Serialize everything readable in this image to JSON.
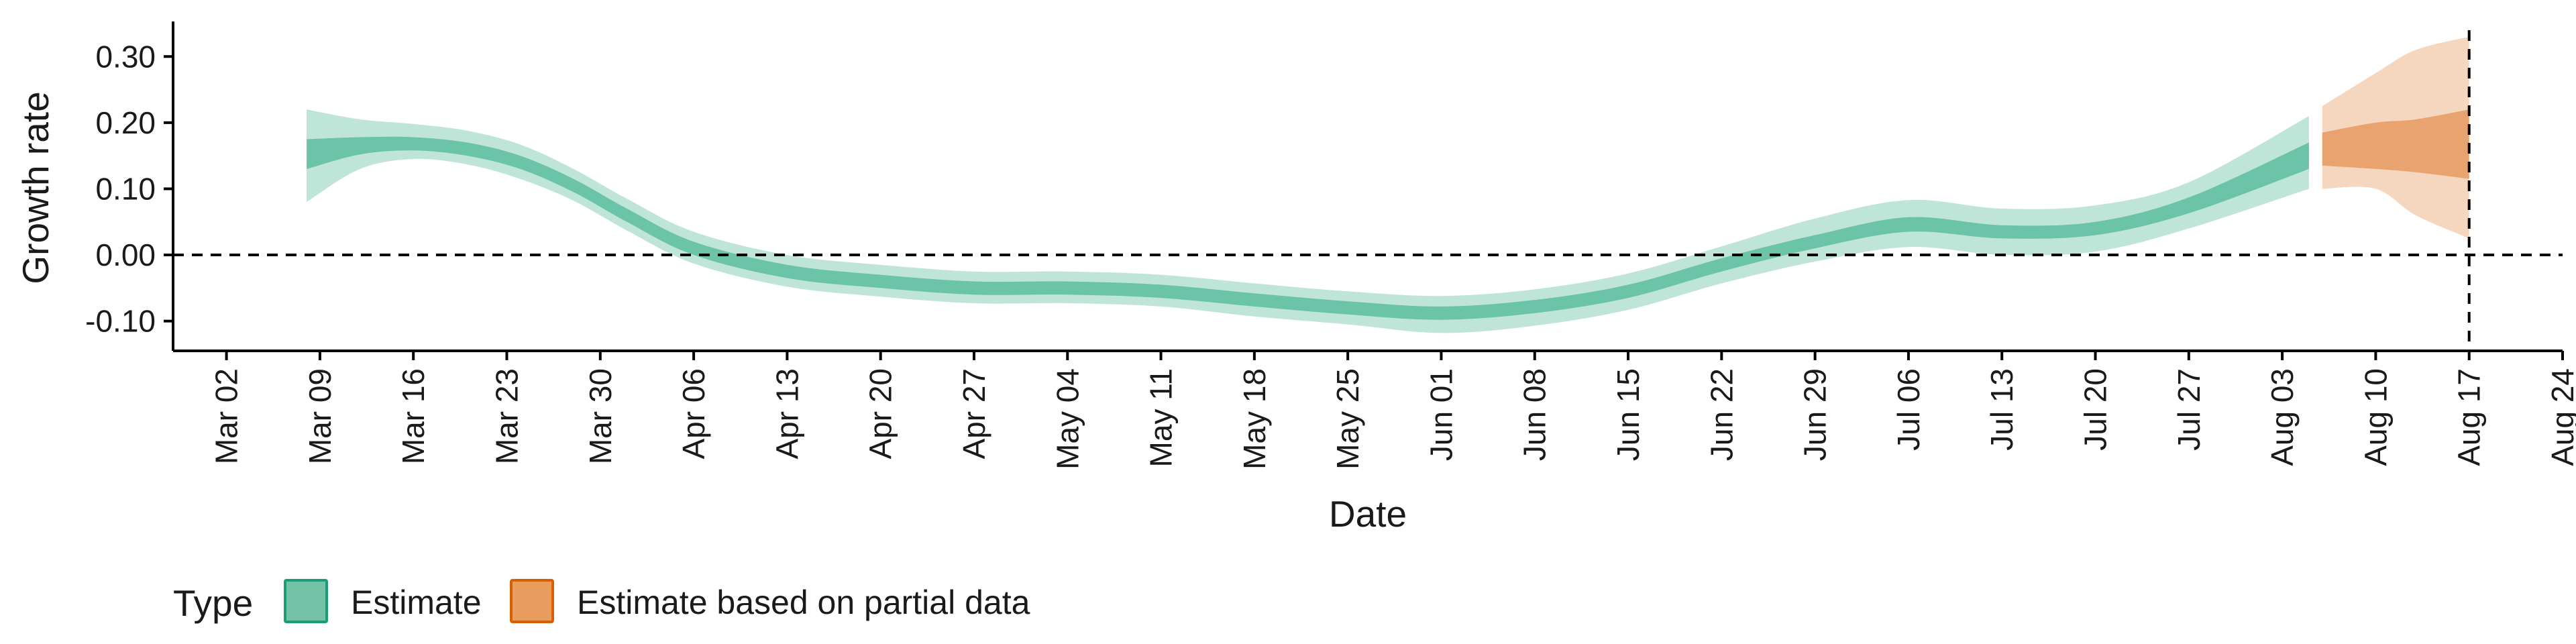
{
  "chart_data": {
    "type": "area",
    "xlabel": "Date",
    "ylabel": "Growth rate",
    "x_range": [
      "2020-02-27",
      "2020-08-24"
    ],
    "ylim": [
      -0.145,
      0.353
    ],
    "y_ticks": [
      -0.1,
      0.0,
      0.1,
      0.2,
      0.3
    ],
    "y_tick_labels": [
      "-0.10",
      "0.00",
      "0.10",
      "0.20",
      "0.30"
    ],
    "x_ticks": [
      "2020-03-02",
      "2020-03-09",
      "2020-03-16",
      "2020-03-23",
      "2020-03-30",
      "2020-04-06",
      "2020-04-13",
      "2020-04-20",
      "2020-04-27",
      "2020-05-04",
      "2020-05-11",
      "2020-05-18",
      "2020-05-25",
      "2020-06-01",
      "2020-06-08",
      "2020-06-15",
      "2020-06-22",
      "2020-06-29",
      "2020-07-06",
      "2020-07-13",
      "2020-07-20",
      "2020-07-27",
      "2020-08-03",
      "2020-08-10",
      "2020-08-17",
      "2020-08-24"
    ],
    "x_tick_labels": [
      "Mar 02",
      "Mar 09",
      "Mar 16",
      "Mar 23",
      "Mar 30",
      "Apr 06",
      "Apr 13",
      "Apr 20",
      "Apr 27",
      "May 04",
      "May 11",
      "May 18",
      "May 25",
      "Jun 01",
      "Jun 08",
      "Jun 15",
      "Jun 22",
      "Jun 29",
      "Jul 06",
      "Jul 13",
      "Jul 20",
      "Jul 27",
      "Aug 03",
      "Aug 10",
      "Aug 17",
      "Aug 24"
    ],
    "hline_y": 0.0,
    "vline_x": "2020-08-17",
    "grid": false,
    "legend": {
      "title": "Type",
      "position": "bottom-left",
      "items": [
        {
          "label": "Estimate",
          "fill": "#74c3a8",
          "stroke": "#1b9e77"
        },
        {
          "label": "Estimate based on partial data",
          "fill": "#e89d5e",
          "stroke": "#d95f02"
        }
      ]
    },
    "series": [
      {
        "name": "Estimate",
        "color": "#66c2a5",
        "points": [
          {
            "x": "2020-03-08",
            "y": 0.15,
            "lo50": 0.13,
            "hi50": 0.175,
            "lo90": 0.08,
            "hi90": 0.22
          },
          {
            "x": "2020-03-12",
            "y": 0.165,
            "lo50": 0.152,
            "hi50": 0.178,
            "lo90": 0.13,
            "hi90": 0.205
          },
          {
            "x": "2020-03-16",
            "y": 0.168,
            "lo50": 0.158,
            "hi50": 0.178,
            "lo90": 0.145,
            "hi90": 0.198
          },
          {
            "x": "2020-03-20",
            "y": 0.16,
            "lo50": 0.15,
            "hi50": 0.17,
            "lo90": 0.137,
            "hi90": 0.188
          },
          {
            "x": "2020-03-24",
            "y": 0.14,
            "lo50": 0.13,
            "hi50": 0.15,
            "lo90": 0.115,
            "hi90": 0.167
          },
          {
            "x": "2020-03-28",
            "y": 0.105,
            "lo50": 0.095,
            "hi50": 0.115,
            "lo90": 0.082,
            "hi90": 0.13
          },
          {
            "x": "2020-04-01",
            "y": 0.06,
            "lo50": 0.05,
            "hi50": 0.07,
            "lo90": 0.037,
            "hi90": 0.085
          },
          {
            "x": "2020-04-06",
            "y": 0.01,
            "lo50": 0.0,
            "hi50": 0.02,
            "lo90": -0.013,
            "hi90": 0.035
          },
          {
            "x": "2020-04-13",
            "y": -0.025,
            "lo50": -0.035,
            "hi50": -0.015,
            "lo90": -0.048,
            "hi90": 0.0
          },
          {
            "x": "2020-04-20",
            "y": -0.04,
            "lo50": -0.05,
            "hi50": -0.03,
            "lo90": -0.063,
            "hi90": -0.015
          },
          {
            "x": "2020-04-27",
            "y": -0.05,
            "lo50": -0.06,
            "hi50": -0.04,
            "lo90": -0.073,
            "hi90": -0.025
          },
          {
            "x": "2020-05-04",
            "y": -0.05,
            "lo50": -0.06,
            "hi50": -0.04,
            "lo90": -0.073,
            "hi90": -0.025
          },
          {
            "x": "2020-05-11",
            "y": -0.055,
            "lo50": -0.065,
            "hi50": -0.045,
            "lo90": -0.078,
            "hi90": -0.03
          },
          {
            "x": "2020-05-18",
            "y": -0.068,
            "lo50": -0.078,
            "hi50": -0.058,
            "lo90": -0.093,
            "hi90": -0.043
          },
          {
            "x": "2020-05-25",
            "y": -0.08,
            "lo50": -0.09,
            "hi50": -0.07,
            "lo90": -0.105,
            "hi90": -0.055
          },
          {
            "x": "2020-06-01",
            "y": -0.088,
            "lo50": -0.098,
            "hi50": -0.078,
            "lo90": -0.118,
            "hi90": -0.062
          },
          {
            "x": "2020-06-08",
            "y": -0.078,
            "lo50": -0.088,
            "hi50": -0.068,
            "lo90": -0.107,
            "hi90": -0.052
          },
          {
            "x": "2020-06-15",
            "y": -0.055,
            "lo50": -0.065,
            "hi50": -0.045,
            "lo90": -0.083,
            "hi90": -0.028
          },
          {
            "x": "2020-06-22",
            "y": -0.015,
            "lo50": -0.025,
            "hi50": -0.005,
            "lo90": -0.043,
            "hi90": 0.013
          },
          {
            "x": "2020-06-29",
            "y": 0.02,
            "lo50": 0.01,
            "hi50": 0.03,
            "lo90": -0.01,
            "hi90": 0.055
          },
          {
            "x": "2020-07-06",
            "y": 0.045,
            "lo50": 0.035,
            "hi50": 0.057,
            "lo90": 0.012,
            "hi90": 0.083
          },
          {
            "x": "2020-07-13",
            "y": 0.035,
            "lo50": 0.025,
            "hi50": 0.045,
            "lo90": 0.0,
            "hi90": 0.07
          },
          {
            "x": "2020-07-20",
            "y": 0.04,
            "lo50": 0.03,
            "hi50": 0.05,
            "lo90": 0.005,
            "hi90": 0.075
          },
          {
            "x": "2020-07-27",
            "y": 0.075,
            "lo50": 0.063,
            "hi50": 0.087,
            "lo90": 0.04,
            "hi90": 0.11
          },
          {
            "x": "2020-08-05",
            "y": 0.15,
            "lo50": 0.13,
            "hi50": 0.17,
            "lo90": 0.1,
            "hi90": 0.21
          }
        ]
      },
      {
        "name": "Estimate based on partial data",
        "color": "#e8a06a",
        "points": [
          {
            "x": "2020-08-06",
            "y": 0.16,
            "lo50": 0.135,
            "hi50": 0.185,
            "lo90": 0.1,
            "hi90": 0.225
          },
          {
            "x": "2020-08-10",
            "y": 0.165,
            "lo50": 0.13,
            "hi50": 0.2,
            "lo90": 0.1,
            "hi90": 0.275
          },
          {
            "x": "2020-08-13",
            "y": 0.16,
            "lo50": 0.125,
            "hi50": 0.205,
            "lo90": 0.06,
            "hi90": 0.31
          },
          {
            "x": "2020-08-17",
            "y": 0.16,
            "lo50": 0.115,
            "hi50": 0.22,
            "lo90": 0.025,
            "hi90": 0.33
          }
        ]
      }
    ]
  }
}
